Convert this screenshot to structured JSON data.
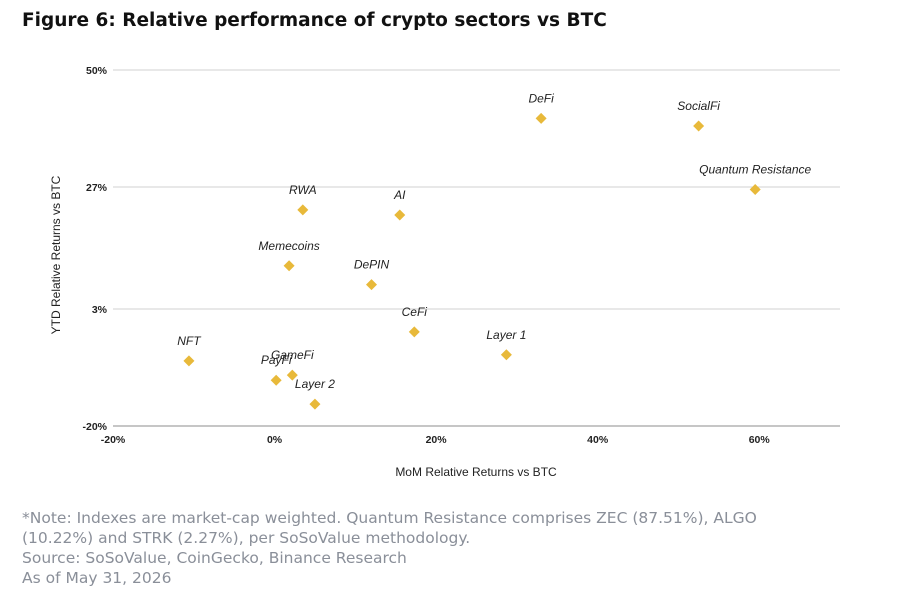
{
  "figure": {
    "title": "Figure 6: Relative performance of crypto sectors vs BTC"
  },
  "chart_data": {
    "type": "scatter",
    "xlabel": "MoM Relative Returns vs BTC",
    "ylabel": "YTD Relative Returns vs BTC",
    "xlim": [
      -20,
      70
    ],
    "ylim": [
      -20,
      50
    ],
    "x_ticks": [
      -20,
      0,
      20,
      40,
      60
    ],
    "x_tick_labels": [
      "-20%",
      "0%",
      "20%",
      "40%",
      "60%"
    ],
    "y_ticks": [
      -20,
      3,
      27,
      50
    ],
    "y_tick_labels": [
      "-20%",
      "3%",
      "27%",
      "50%"
    ],
    "grid": "horizontal",
    "point_color": "#E8B93A",
    "points": [
      {
        "label": "DeFi",
        "x": 33,
        "y": 40.5
      },
      {
        "label": "SocialFi",
        "x": 52.5,
        "y": 39
      },
      {
        "label": "Quantum Resistance",
        "x": 59.5,
        "y": 26.5
      },
      {
        "label": "RWA",
        "x": 3.5,
        "y": 22.5
      },
      {
        "label": "AI",
        "x": 15.5,
        "y": 21.5
      },
      {
        "label": "Memecoins",
        "x": 1.8,
        "y": 11.5
      },
      {
        "label": "DePIN",
        "x": 12,
        "y": 7.8
      },
      {
        "label": "CeFi",
        "x": 17.3,
        "y": -1.5
      },
      {
        "label": "Layer 1",
        "x": 28.7,
        "y": -6
      },
      {
        "label": "NFT",
        "x": -10.6,
        "y": -7.2
      },
      {
        "label": "GameFi",
        "x": 2.2,
        "y": -10
      },
      {
        "label": "PayFi",
        "x": 0.2,
        "y": -11
      },
      {
        "label": "Layer 2",
        "x": 5,
        "y": -15.7
      }
    ]
  },
  "notes": {
    "line1": "*Note: Indexes are market-cap weighted. Quantum Resistance comprises ZEC (87.51%), ALGO",
    "line2": "(10.22%) and STRK (2.27%), per SoSoValue methodology.",
    "line3": "Source: SoSoValue, CoinGecko, Binance Research",
    "line4": "As of May 31, 2026"
  }
}
